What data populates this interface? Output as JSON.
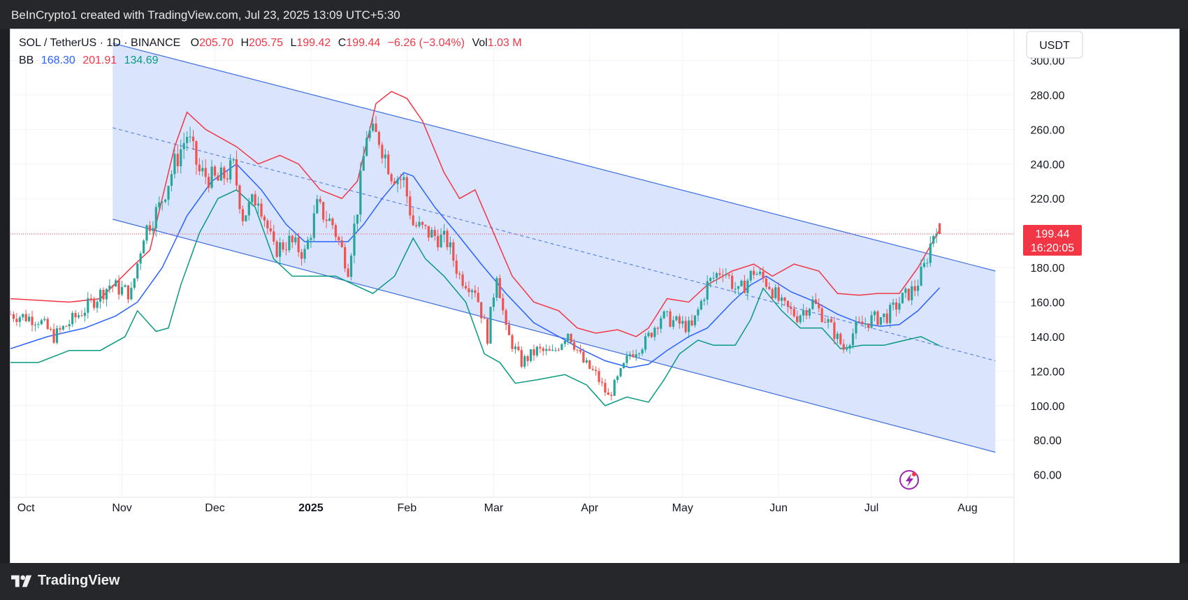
{
  "header": {
    "credit": "BeInCrypto1 created with TradingView.com, Jul 23, 2025 13:09 UTC+5:30"
  },
  "footer": {
    "brand": "TradingView"
  },
  "legend": {
    "symbol": "SOL / TetherUS · 1D · BINANCE",
    "o_label": "O",
    "o_value": "205.70",
    "h_label": "H",
    "h_value": "205.75",
    "l_label": "L",
    "l_value": "199.42",
    "c_label": "C",
    "c_value": "199.44",
    "change": "−6.26 (−3.04%)",
    "vol_label": "Vol",
    "vol_value": "1.03 M",
    "bb_label": "BB",
    "bb_basis": "168.30",
    "bb_upper": "201.91",
    "bb_lower": "134.69"
  },
  "currency_button": "USDT",
  "price_badge": {
    "price": "199.44",
    "countdown": "16:20:05"
  },
  "colors": {
    "up": "#26a69a",
    "down": "#ef5350",
    "bb_upper": "#f23645",
    "bb_basis": "#2962ff",
    "bb_lower": "#089981",
    "channel_fill": "#d8e3fd",
    "channel_line": "#3c6ee0",
    "badge": "#f23645"
  },
  "chart_data": {
    "type": "candlestick",
    "symbol": "SOL / TetherUS",
    "interval": "1D",
    "exchange": "BINANCE",
    "ylim": [
      55,
      318
    ],
    "y_ticks": [
      "60.00",
      "80.00",
      "100.00",
      "120.00",
      "140.00",
      "160.00",
      "180.00",
      "200.00",
      "220.00",
      "240.00",
      "260.00",
      "280.00",
      "300.00"
    ],
    "x_ticks": [
      "Oct",
      "Nov",
      "Dec",
      "2025",
      "Feb",
      "Mar",
      "Apr",
      "May",
      "Jun",
      "Jul",
      "Aug"
    ],
    "close_series": [
      {
        "date": "2024-09-26",
        "v": 153
      },
      {
        "date": "2024-10-05",
        "v": 150
      },
      {
        "date": "2024-10-10",
        "v": 140
      },
      {
        "date": "2024-10-20",
        "v": 156
      },
      {
        "date": "2024-10-28",
        "v": 170
      },
      {
        "date": "2024-11-04",
        "v": 165
      },
      {
        "date": "2024-11-08",
        "v": 200
      },
      {
        "date": "2024-11-13",
        "v": 215
      },
      {
        "date": "2024-11-18",
        "v": 240
      },
      {
        "date": "2024-11-22",
        "v": 257
      },
      {
        "date": "2024-11-26",
        "v": 235
      },
      {
        "date": "2024-12-02",
        "v": 230
      },
      {
        "date": "2024-12-07",
        "v": 238
      },
      {
        "date": "2024-12-10",
        "v": 210
      },
      {
        "date": "2024-12-15",
        "v": 222
      },
      {
        "date": "2024-12-20",
        "v": 190
      },
      {
        "date": "2024-12-25",
        "v": 195
      },
      {
        "date": "2024-12-30",
        "v": 188
      },
      {
        "date": "2025-01-03",
        "v": 215
      },
      {
        "date": "2025-01-08",
        "v": 205
      },
      {
        "date": "2025-01-13",
        "v": 180
      },
      {
        "date": "2025-01-16",
        "v": 215
      },
      {
        "date": "2025-01-19",
        "v": 258
      },
      {
        "date": "2025-01-23",
        "v": 255
      },
      {
        "date": "2025-01-27",
        "v": 235
      },
      {
        "date": "2025-01-31",
        "v": 230
      },
      {
        "date": "2025-02-03",
        "v": 205
      },
      {
        "date": "2025-02-08",
        "v": 200
      },
      {
        "date": "2025-02-14",
        "v": 195
      },
      {
        "date": "2025-02-18",
        "v": 175
      },
      {
        "date": "2025-02-23",
        "v": 168
      },
      {
        "date": "2025-02-27",
        "v": 140
      },
      {
        "date": "2025-03-02",
        "v": 178
      },
      {
        "date": "2025-03-05",
        "v": 143
      },
      {
        "date": "2025-03-10",
        "v": 125
      },
      {
        "date": "2025-03-15",
        "v": 132
      },
      {
        "date": "2025-03-20",
        "v": 130
      },
      {
        "date": "2025-03-25",
        "v": 143
      },
      {
        "date": "2025-03-30",
        "v": 125
      },
      {
        "date": "2025-04-03",
        "v": 118
      },
      {
        "date": "2025-04-07",
        "v": 105
      },
      {
        "date": "2025-04-10",
        "v": 115
      },
      {
        "date": "2025-04-14",
        "v": 130
      },
      {
        "date": "2025-04-19",
        "v": 137
      },
      {
        "date": "2025-04-24",
        "v": 152
      },
      {
        "date": "2025-04-29",
        "v": 148
      },
      {
        "date": "2025-05-04",
        "v": 145
      },
      {
        "date": "2025-05-09",
        "v": 170
      },
      {
        "date": "2025-05-14",
        "v": 180
      },
      {
        "date": "2025-05-19",
        "v": 165
      },
      {
        "date": "2025-05-24",
        "v": 178
      },
      {
        "date": "2025-05-29",
        "v": 170
      },
      {
        "date": "2025-06-02",
        "v": 158
      },
      {
        "date": "2025-06-07",
        "v": 152
      },
      {
        "date": "2025-06-12",
        "v": 160
      },
      {
        "date": "2025-06-17",
        "v": 148
      },
      {
        "date": "2025-06-22",
        "v": 133
      },
      {
        "date": "2025-06-26",
        "v": 145
      },
      {
        "date": "2025-07-01",
        "v": 150
      },
      {
        "date": "2025-07-06",
        "v": 152
      },
      {
        "date": "2025-07-11",
        "v": 162
      },
      {
        "date": "2025-07-15",
        "v": 168
      },
      {
        "date": "2025-07-18",
        "v": 180
      },
      {
        "date": "2025-07-21",
        "v": 200
      },
      {
        "date": "2025-07-22",
        "v": 205.7
      },
      {
        "date": "2025-07-23",
        "v": 199.44
      }
    ],
    "bb_upper": [
      {
        "date": "2024-09-26",
        "v": 162
      },
      {
        "date": "2024-10-15",
        "v": 160
      },
      {
        "date": "2024-10-25",
        "v": 162
      },
      {
        "date": "2024-11-04",
        "v": 180
      },
      {
        "date": "2024-11-10",
        "v": 190
      },
      {
        "date": "2024-11-18",
        "v": 250
      },
      {
        "date": "2024-11-22",
        "v": 270
      },
      {
        "date": "2024-11-28",
        "v": 260
      },
      {
        "date": "2024-12-08",
        "v": 250
      },
      {
        "date": "2024-12-15",
        "v": 240
      },
      {
        "date": "2024-12-22",
        "v": 245
      },
      {
        "date": "2024-12-28",
        "v": 240
      },
      {
        "date": "2025-01-04",
        "v": 225
      },
      {
        "date": "2025-01-11",
        "v": 220
      },
      {
        "date": "2025-01-16",
        "v": 230
      },
      {
        "date": "2025-01-22",
        "v": 275
      },
      {
        "date": "2025-01-27",
        "v": 282
      },
      {
        "date": "2025-02-01",
        "v": 278
      },
      {
        "date": "2025-02-06",
        "v": 265
      },
      {
        "date": "2025-02-13",
        "v": 235
      },
      {
        "date": "2025-02-18",
        "v": 220
      },
      {
        "date": "2025-02-23",
        "v": 225
      },
      {
        "date": "2025-03-01",
        "v": 200
      },
      {
        "date": "2025-03-07",
        "v": 175
      },
      {
        "date": "2025-03-14",
        "v": 160
      },
      {
        "date": "2025-03-22",
        "v": 155
      },
      {
        "date": "2025-03-28",
        "v": 145
      },
      {
        "date": "2025-04-03",
        "v": 142
      },
      {
        "date": "2025-04-10",
        "v": 144
      },
      {
        "date": "2025-04-16",
        "v": 140
      },
      {
        "date": "2025-04-20",
        "v": 145
      },
      {
        "date": "2025-04-26",
        "v": 162
      },
      {
        "date": "2025-05-03",
        "v": 160
      },
      {
        "date": "2025-05-09",
        "v": 170
      },
      {
        "date": "2025-05-17",
        "v": 178
      },
      {
        "date": "2025-05-24",
        "v": 182
      },
      {
        "date": "2025-05-30",
        "v": 175
      },
      {
        "date": "2025-06-06",
        "v": 182
      },
      {
        "date": "2025-06-14",
        "v": 178
      },
      {
        "date": "2025-06-20",
        "v": 165
      },
      {
        "date": "2025-06-27",
        "v": 164
      },
      {
        "date": "2025-07-03",
        "v": 165
      },
      {
        "date": "2025-07-10",
        "v": 165
      },
      {
        "date": "2025-07-16",
        "v": 180
      },
      {
        "date": "2025-07-23",
        "v": 201.91
      }
    ],
    "bb_basis": [
      {
        "date": "2024-09-26",
        "v": 133
      },
      {
        "date": "2024-10-08",
        "v": 140
      },
      {
        "date": "2024-10-20",
        "v": 145
      },
      {
        "date": "2024-10-30",
        "v": 152
      },
      {
        "date": "2024-11-06",
        "v": 160
      },
      {
        "date": "2024-11-14",
        "v": 180
      },
      {
        "date": "2024-11-22",
        "v": 210
      },
      {
        "date": "2024-11-30",
        "v": 230
      },
      {
        "date": "2024-12-08",
        "v": 240
      },
      {
        "date": "2024-12-16",
        "v": 225
      },
      {
        "date": "2024-12-24",
        "v": 205
      },
      {
        "date": "2024-12-30",
        "v": 195
      },
      {
        "date": "2025-01-06",
        "v": 195
      },
      {
        "date": "2025-01-13",
        "v": 195
      },
      {
        "date": "2025-01-18",
        "v": 205
      },
      {
        "date": "2025-01-24",
        "v": 220
      },
      {
        "date": "2025-01-31",
        "v": 235
      },
      {
        "date": "2025-02-03",
        "v": 233
      },
      {
        "date": "2025-02-10",
        "v": 215
      },
      {
        "date": "2025-02-17",
        "v": 200
      },
      {
        "date": "2025-02-25",
        "v": 182
      },
      {
        "date": "2025-03-05",
        "v": 165
      },
      {
        "date": "2025-03-14",
        "v": 148
      },
      {
        "date": "2025-03-22",
        "v": 140
      },
      {
        "date": "2025-03-30",
        "v": 132
      },
      {
        "date": "2025-04-06",
        "v": 126
      },
      {
        "date": "2025-04-14",
        "v": 122
      },
      {
        "date": "2025-04-20",
        "v": 124
      },
      {
        "date": "2025-04-26",
        "v": 132
      },
      {
        "date": "2025-05-03",
        "v": 140
      },
      {
        "date": "2025-05-09",
        "v": 145
      },
      {
        "date": "2025-05-17",
        "v": 160
      },
      {
        "date": "2025-05-23",
        "v": 170
      },
      {
        "date": "2025-05-28",
        "v": 175
      },
      {
        "date": "2025-06-05",
        "v": 166
      },
      {
        "date": "2025-06-13",
        "v": 160
      },
      {
        "date": "2025-06-20",
        "v": 153
      },
      {
        "date": "2025-06-27",
        "v": 148
      },
      {
        "date": "2025-07-04",
        "v": 146
      },
      {
        "date": "2025-07-10",
        "v": 147
      },
      {
        "date": "2025-07-16",
        "v": 155
      },
      {
        "date": "2025-07-23",
        "v": 168.3
      }
    ],
    "bb_lower": [
      {
        "date": "2024-09-26",
        "v": 125
      },
      {
        "date": "2024-10-05",
        "v": 125
      },
      {
        "date": "2024-10-15",
        "v": 132
      },
      {
        "date": "2024-10-25",
        "v": 132
      },
      {
        "date": "2024-11-02",
        "v": 140
      },
      {
        "date": "2024-11-06",
        "v": 155
      },
      {
        "date": "2024-11-12",
        "v": 143
      },
      {
        "date": "2024-11-16",
        "v": 145
      },
      {
        "date": "2024-11-20",
        "v": 170
      },
      {
        "date": "2024-11-26",
        "v": 200
      },
      {
        "date": "2024-12-02",
        "v": 220
      },
      {
        "date": "2024-12-08",
        "v": 225
      },
      {
        "date": "2024-12-14",
        "v": 215
      },
      {
        "date": "2024-12-20",
        "v": 185
      },
      {
        "date": "2024-12-26",
        "v": 175
      },
      {
        "date": "2025-01-03",
        "v": 175
      },
      {
        "date": "2025-01-09",
        "v": 175
      },
      {
        "date": "2025-01-15",
        "v": 170
      },
      {
        "date": "2025-01-21",
        "v": 165
      },
      {
        "date": "2025-01-28",
        "v": 175
      },
      {
        "date": "2025-02-03",
        "v": 197
      },
      {
        "date": "2025-02-07",
        "v": 185
      },
      {
        "date": "2025-02-13",
        "v": 175
      },
      {
        "date": "2025-02-20",
        "v": 160
      },
      {
        "date": "2025-02-26",
        "v": 130
      },
      {
        "date": "2025-03-03",
        "v": 125
      },
      {
        "date": "2025-03-08",
        "v": 113
      },
      {
        "date": "2025-03-15",
        "v": 115
      },
      {
        "date": "2025-03-24",
        "v": 118
      },
      {
        "date": "2025-03-31",
        "v": 112
      },
      {
        "date": "2025-04-06",
        "v": 100
      },
      {
        "date": "2025-04-13",
        "v": 105
      },
      {
        "date": "2025-04-20",
        "v": 102
      },
      {
        "date": "2025-04-25",
        "v": 115
      },
      {
        "date": "2025-04-30",
        "v": 130
      },
      {
        "date": "2025-05-06",
        "v": 138
      },
      {
        "date": "2025-05-11",
        "v": 135
      },
      {
        "date": "2025-05-18",
        "v": 135
      },
      {
        "date": "2025-05-23",
        "v": 150
      },
      {
        "date": "2025-05-27",
        "v": 168
      },
      {
        "date": "2025-06-02",
        "v": 155
      },
      {
        "date": "2025-06-08",
        "v": 145
      },
      {
        "date": "2025-06-15",
        "v": 145
      },
      {
        "date": "2025-06-21",
        "v": 133
      },
      {
        "date": "2025-06-28",
        "v": 135
      },
      {
        "date": "2025-07-05",
        "v": 135
      },
      {
        "date": "2025-07-12",
        "v": 138
      },
      {
        "date": "2025-07-17",
        "v": 140
      },
      {
        "date": "2025-07-23",
        "v": 134.69
      }
    ],
    "channel": {
      "upper": [
        {
          "date": "2024-10-29",
          "v": 310
        },
        {
          "date": "2025-08-10",
          "v": 178
        }
      ],
      "mid": [
        {
          "date": "2024-10-29",
          "v": 261
        },
        {
          "date": "2025-08-10",
          "v": 126
        }
      ],
      "lower": [
        {
          "date": "2024-10-29",
          "v": 208
        },
        {
          "date": "2025-08-10",
          "v": 73
        }
      ]
    },
    "last_price": 199.44
  }
}
